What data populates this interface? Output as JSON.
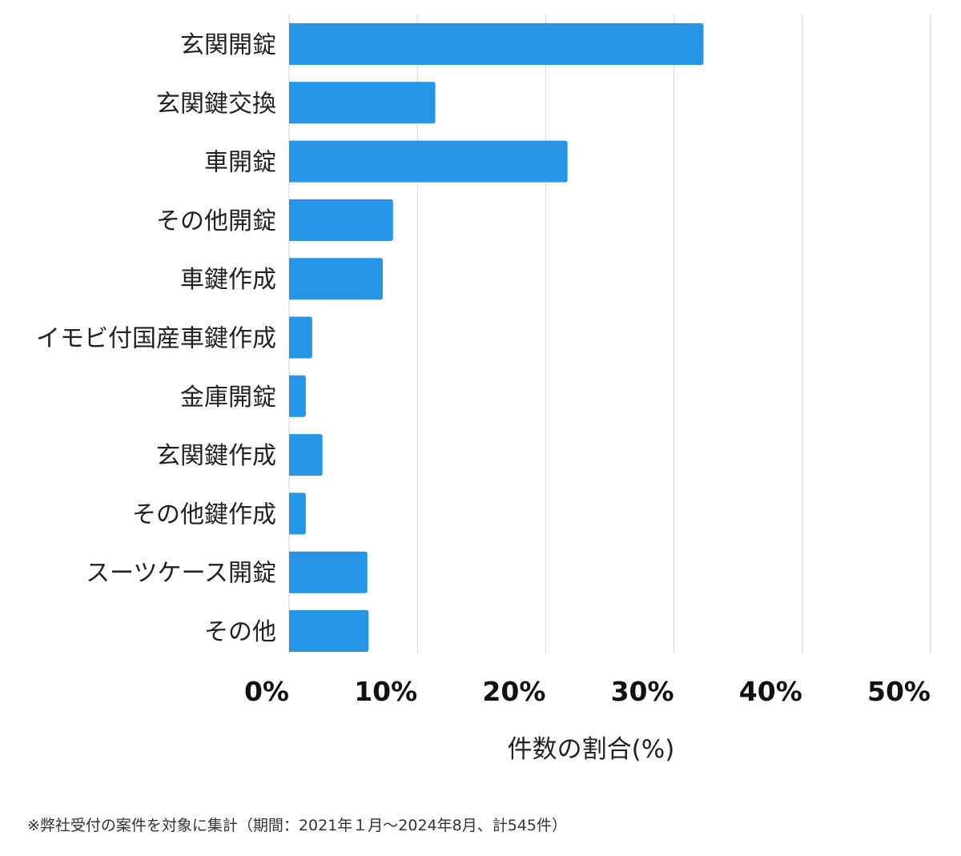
{
  "chart_data": {
    "type": "bar",
    "orientation": "horizontal",
    "categories": [
      "玄関開錠",
      "玄関鍵交換",
      "車開錠",
      "その他開錠",
      "車鍵作成",
      "イモビ付国産車鍵作成",
      "金庫開錠",
      "玄関鍵作成",
      "その他鍵作成",
      "スーツケース開錠",
      "その他"
    ],
    "values": [
      32.3,
      11.4,
      21.7,
      8.1,
      7.3,
      1.8,
      1.3,
      2.6,
      1.3,
      6.1,
      6.2
    ],
    "xlim": [
      0,
      50
    ],
    "ticks": [
      0,
      10,
      20,
      30,
      40,
      50
    ],
    "tick_labels": [
      "0%",
      "10%",
      "20%",
      "30%",
      "40%",
      "50%"
    ],
    "xlabel": "件数の割合(%)",
    "ylabel": "",
    "grid": true,
    "bar_color": "#2795e6",
    "grid_color": "#d9d9d9"
  },
  "footnote": "※弊社受付の案件を対象に集計（期間：2021年１月〜2024年8月、計545件）"
}
